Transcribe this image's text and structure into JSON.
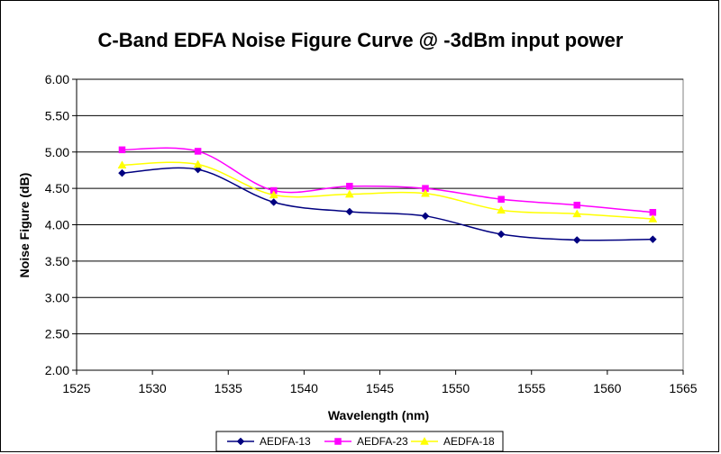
{
  "chart_data": {
    "type": "line",
    "title": "C-Band EDFA Noise Figure Curve @ -3dBm input power",
    "xlabel": "Wavelength (nm)",
    "ylabel": "Noise Figure (dB)",
    "xlim": [
      1525,
      1565
    ],
    "ylim": [
      2.0,
      6.0
    ],
    "x_ticks": [
      "1525",
      "1530",
      "1535",
      "1540",
      "1545",
      "1550",
      "1555",
      "1560",
      "1565"
    ],
    "y_ticks": [
      "2.00",
      "2.50",
      "3.00",
      "3.50",
      "4.00",
      "4.50",
      "5.00",
      "5.50",
      "6.00"
    ],
    "x": [
      1528,
      1533,
      1538,
      1543,
      1548,
      1553,
      1558,
      1563
    ],
    "grid": "horizontal",
    "legend_position": "bottom",
    "series": [
      {
        "name": "AEDFA-13",
        "color": "#000080",
        "marker": "diamond",
        "values": [
          4.71,
          4.76,
          4.31,
          4.18,
          4.12,
          3.87,
          3.79,
          3.8
        ]
      },
      {
        "name": "AEDFA-23",
        "color": "#ff00ff",
        "marker": "square",
        "values": [
          5.03,
          5.01,
          4.47,
          4.53,
          4.5,
          4.35,
          4.27,
          4.17
        ]
      },
      {
        "name": "AEDFA-18",
        "color": "#ffff00",
        "marker": "triangle",
        "values": [
          4.82,
          4.83,
          4.41,
          4.42,
          4.43,
          4.2,
          4.15,
          4.08
        ]
      }
    ]
  }
}
